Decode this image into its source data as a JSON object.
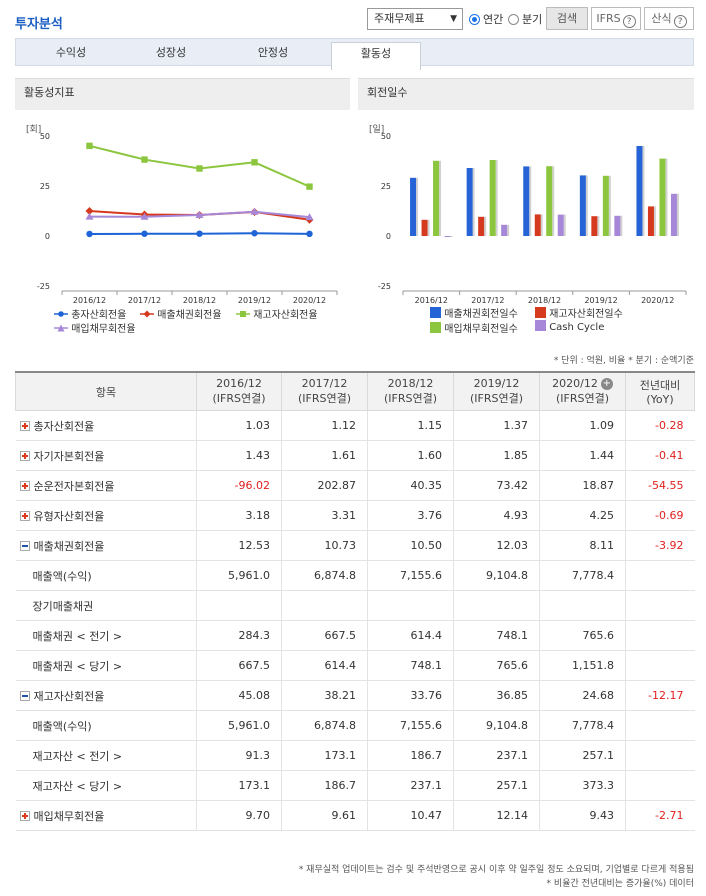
{
  "header": {
    "title": "투자분석",
    "select_value": "주재무제표",
    "radio_annual": "연간",
    "radio_quarter": "분기",
    "search_label": "검색",
    "ifrs_label": "IFRS",
    "formula_label": "산식",
    "help_glyph": "?"
  },
  "tabs": [
    "수익성",
    "성장성",
    "안정성",
    "활동성"
  ],
  "left_panel": {
    "title": "활동성지표",
    "unit": "[회]",
    "legend": [
      "총자산회전율",
      "매출채권회전율",
      "재고자산회전율",
      "매입채무회전율"
    ]
  },
  "right_panel": {
    "title": "회전일수",
    "unit": "[일]",
    "legend": [
      "매출채권회전일수",
      "재고자산회전일수",
      "매입채무회전일수",
      "Cash Cycle"
    ]
  },
  "chart_data": [
    {
      "type": "line",
      "x": [
        "2016/12",
        "2017/12",
        "2018/12",
        "2019/12",
        "2020/12"
      ],
      "ylim": [
        -25,
        50
      ],
      "yticks": [
        50,
        25,
        0,
        -25
      ],
      "grid": false,
      "legend_position": "bottom",
      "series": [
        {
          "name": "총자산회전율",
          "color": "#1f64d6",
          "marker": "circle",
          "values": [
            1.03,
            1.12,
            1.15,
            1.37,
            1.09
          ]
        },
        {
          "name": "매출채권회전율",
          "color": "#d5391e",
          "marker": "diamond",
          "values": [
            12.53,
            10.73,
            10.5,
            12.03,
            8.11
          ]
        },
        {
          "name": "재고자산회전율",
          "color": "#8cc63f",
          "marker": "square",
          "values": [
            45.08,
            38.21,
            33.76,
            36.85,
            24.68
          ]
        },
        {
          "name": "매입채무회전율",
          "color": "#a788d8",
          "marker": "triangle",
          "values": [
            9.7,
            9.61,
            10.47,
            12.14,
            9.43
          ]
        }
      ]
    },
    {
      "type": "bar",
      "categories": [
        "2016/12",
        "2017/12",
        "2018/12",
        "2019/12",
        "2020/12"
      ],
      "ylim": [
        -25,
        50
      ],
      "yticks": [
        50,
        25,
        0,
        -25
      ],
      "grid": false,
      "legend_position": "bottom",
      "series": [
        {
          "name": "매출채권회전일수",
          "color": "#2563d6",
          "values": [
            29.1,
            34.0,
            34.8,
            30.3,
            45.0
          ]
        },
        {
          "name": "재고자산회전일수",
          "color": "#d5391e",
          "values": [
            8.1,
            9.6,
            10.8,
            9.9,
            14.8
          ]
        },
        {
          "name": "매입채무회전일수",
          "color": "#8cc63f",
          "values": [
            37.6,
            38.0,
            34.9,
            30.1,
            38.7
          ]
        },
        {
          "name": "Cash Cycle",
          "color": "#a788d8",
          "values": [
            -0.4,
            5.6,
            10.7,
            10.1,
            21.1
          ]
        }
      ]
    }
  ],
  "units_note": "* 단위 : 억원, 비율   * 분기 : 순액기준",
  "table": {
    "headers": [
      {
        "line1": "항목",
        "line2": ""
      },
      {
        "line1": "2016/12",
        "line2": "(IFRS연결)"
      },
      {
        "line1": "2017/12",
        "line2": "(IFRS연결)"
      },
      {
        "line1": "2018/12",
        "line2": "(IFRS연결)"
      },
      {
        "line1": "2019/12",
        "line2": "(IFRS연결)"
      },
      {
        "line1": "2020/12",
        "line2": "(IFRS연결)"
      },
      {
        "line1": "전년대비",
        "line2": "(YoY)"
      }
    ],
    "rows": [
      {
        "label": "총자산회전율",
        "toggle": "plus",
        "cells": [
          "1.03",
          "1.12",
          "1.15",
          "1.37",
          "1.09",
          "-0.28"
        ],
        "neg": [
          false,
          false,
          false,
          false,
          false,
          true
        ]
      },
      {
        "label": "자기자본회전율",
        "toggle": "plus",
        "cells": [
          "1.43",
          "1.61",
          "1.60",
          "1.85",
          "1.44",
          "-0.41"
        ],
        "neg": [
          false,
          false,
          false,
          false,
          false,
          true
        ]
      },
      {
        "label": "순운전자본회전율",
        "toggle": "plus",
        "cells": [
          "-96.02",
          "202.87",
          "40.35",
          "73.42",
          "18.87",
          "-54.55"
        ],
        "neg": [
          true,
          false,
          false,
          false,
          false,
          true
        ]
      },
      {
        "label": "유형자산회전율",
        "toggle": "plus",
        "cells": [
          "3.18",
          "3.31",
          "3.76",
          "4.93",
          "4.25",
          "-0.69"
        ],
        "neg": [
          false,
          false,
          false,
          false,
          false,
          true
        ]
      },
      {
        "label": "매출채권회전율",
        "toggle": "minus",
        "cells": [
          "12.53",
          "10.73",
          "10.50",
          "12.03",
          "8.11",
          "-3.92"
        ],
        "neg": [
          false,
          false,
          false,
          false,
          false,
          true
        ]
      },
      {
        "label": "매출액(수익)",
        "toggle": "none",
        "cells": [
          "5,961.0",
          "6,874.8",
          "7,155.6",
          "9,104.8",
          "7,778.4",
          ""
        ],
        "neg": [
          false,
          false,
          false,
          false,
          false,
          false
        ]
      },
      {
        "label": "장기매출채권",
        "toggle": "none",
        "cells": [
          "",
          "",
          "",
          "",
          "",
          ""
        ],
        "neg": [
          false,
          false,
          false,
          false,
          false,
          false
        ]
      },
      {
        "label": "매출채권 < 전기 >",
        "toggle": "none",
        "cells": [
          "284.3",
          "667.5",
          "614.4",
          "748.1",
          "765.6",
          ""
        ],
        "neg": [
          false,
          false,
          false,
          false,
          false,
          false
        ]
      },
      {
        "label": "매출채권 < 당기 >",
        "toggle": "none",
        "cells": [
          "667.5",
          "614.4",
          "748.1",
          "765.6",
          "1,151.8",
          ""
        ],
        "neg": [
          false,
          false,
          false,
          false,
          false,
          false
        ]
      },
      {
        "label": "재고자산회전율",
        "toggle": "minus",
        "cells": [
          "45.08",
          "38.21",
          "33.76",
          "36.85",
          "24.68",
          "-12.17"
        ],
        "neg": [
          false,
          false,
          false,
          false,
          false,
          true
        ]
      },
      {
        "label": "매출액(수익)",
        "toggle": "none",
        "cells": [
          "5,961.0",
          "6,874.8",
          "7,155.6",
          "9,104.8",
          "7,778.4",
          ""
        ],
        "neg": [
          false,
          false,
          false,
          false,
          false,
          false
        ]
      },
      {
        "label": "재고자산 < 전기 >",
        "toggle": "none",
        "cells": [
          "91.3",
          "173.1",
          "186.7",
          "237.1",
          "257.1",
          ""
        ],
        "neg": [
          false,
          false,
          false,
          false,
          false,
          false
        ]
      },
      {
        "label": "재고자산 < 당기 >",
        "toggle": "none",
        "cells": [
          "173.1",
          "186.7",
          "237.1",
          "257.1",
          "373.3",
          ""
        ],
        "neg": [
          false,
          false,
          false,
          false,
          false,
          false
        ]
      },
      {
        "label": "매입채무회전율",
        "toggle": "plus",
        "cells": [
          "9.70",
          "9.61",
          "10.47",
          "12.14",
          "9.43",
          "-2.71"
        ],
        "neg": [
          false,
          false,
          false,
          false,
          false,
          true
        ]
      }
    ]
  },
  "footnotes": [
    "* 재무실적 업데이트는 검수 및 주석반영으로 공시 이후 약 일주일 정도 소요되며, 기업별로 다르게 적용됨",
    "* 비율간 전년대비는 증가율(%) 데이터"
  ]
}
